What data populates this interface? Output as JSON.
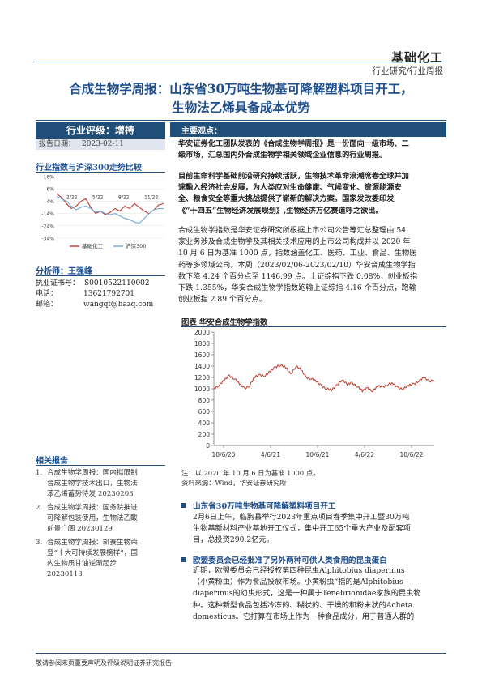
{
  "header": {
    "category": "基础化工",
    "subcategory": "行业研究/行业周报"
  },
  "title_line1": "合成生物学周报：山东省30万吨生物基可降解塑料项目开工，",
  "title_line2": "生物法乙烯具备成本优势",
  "sidebar": {
    "rating": "行业评级：增持",
    "report_date_label": "报告日期：",
    "report_date": "2023-02-11",
    "trend_title": "行业指数与沪深300走势比较",
    "legend": [
      "基础化工",
      "沪深300"
    ],
    "analyst_title": "分析师：王强峰",
    "license_label": "执业证书号：",
    "license": "S0010522110002",
    "phone_label": "电话：",
    "phone": "13621792701",
    "email_label": "邮箱：",
    "email": "wangqf@hazq.com",
    "related_title": "相关报告",
    "related": [
      {
        "num": "1.",
        "lines": [
          "合成生物学周报：国内拟限制",
          "合成生物学技术出口，生物法",
          "苯乙烯蓄势待发 20230203"
        ]
      },
      {
        "num": "2.",
        "lines": [
          "合成生物学周报：国务院推进",
          "可降解包装使用，生物法乙酸",
          "前景广阔 20230129"
        ]
      },
      {
        "num": "3.",
        "lines": [
          "合成生物学周报：凯赛生物荣",
          "登“十大可持续发展榜样”，国",
          "内生物质甘油逆渐起步",
          "20230113"
        ]
      }
    ]
  },
  "key_points": {
    "title": "主要观点：",
    "para1": [
      "华安证券化工团队发表的《合成生物学周报》是一份面向一级市场、二",
      "级市场，汇总国内外合成生物学相关领域企业信息的行业周报。"
    ],
    "para2": [
      "目前生命科学基础前沿研究持续活跃，生物技术革命浪潮席卷全球并加",
      "速融入经济社会发展，为人类应对生命健康、气候变化、资源能源安",
      "全、粮食安全等重大挑战提供了崭新的解决方案。国家发改委印发",
      "《“十四五”生物经济发展规划》,生物经济万亿赛道呼之欲出。"
    ],
    "para3": [
      "合成生物学指数是华安证券研究所根据上市公司公告等汇总整理由 54",
      "家业务涉及合成生物学及其相关技术应用的上市公司构成并以 2020 年",
      "10 月 6 日为基准 1000 点，指数涵盖化工、医药、工业、食品、生物医",
      "药等多领域公司。本周（2023/02/06-2023/02/10）华安合成生物学指",
      "数下降 4.24 个百分点至 1146.99 点。上证综指下跌 0.08%，创业板指",
      "下跌 1.355%，华安合成生物学指数跑输上证综指 4.16 个百分点，跑输",
      "创业板指 2.89 个百分点。"
    ]
  },
  "chart_title": "图表 华安合成生物学指数",
  "chart_note": "注：以 2020 年 10 月 6 日为基准 1000 点。",
  "chart_source": "资料来源：Wind，华安证券研究所",
  "news": [
    {
      "title": "山东省30万吨生物基可降解塑料项目开工",
      "lines": [
        "2月6日上午，临朐县举行2023年重点项目春季集中开工暨30万吨",
        "生物基新材料产业基地开工仪式，集中开工65个重大产业及配套项",
        "目，总投资290.2亿元。"
      ]
    },
    {
      "title": "欧盟委员会已经批准了另外两种可供人类食用的昆虫蛋白",
      "lines": [
        "近期，欧盟委员会已经授权第四种昆虫Alphitobius diaperinus",
        "（小黄粉虫）作为食品投放市场。小黄粉虫“指的是Alphitobius",
        "diaperinus的幼虫形式，这是一种属于Tenebrionidae家族的昆虫物",
        "种。这种新型食品包括冷冻的、糊状的、干燥的和粉末状的Acheta",
        "domesticus。它打算在市场上作为一种食品成分，用于普通人群的"
      ]
    }
  ],
  "footer": "敬请参阅末页重要声明及评级说明证券研究报告",
  "colors": {
    "brand": "#1f4e79",
    "series_red": "#c0392b",
    "series_blue": "#6fa8dc"
  },
  "chart_data": [
    {
      "type": "line",
      "title": "行业指数与沪深300走势比较",
      "ylim": [
        -34,
        16
      ],
      "yticks": [
        "16%",
        "6%",
        "-4%",
        "-14%",
        "-24%",
        "-34%"
      ],
      "xticks": [
        "2/22",
        "5/22",
        "8/22",
        "11/22"
      ],
      "series": [
        {
          "name": "基础化工",
          "values": [
            2,
            -1,
            -6,
            -10,
            -8,
            -4,
            -2,
            -9,
            -14,
            -12,
            -15,
            -13,
            -10,
            -12,
            -8,
            -10,
            -6,
            -9,
            -12,
            -14,
            -11,
            -7,
            -6
          ]
        },
        {
          "name": "沪深300",
          "values": [
            0,
            -2,
            -4,
            -8,
            -11,
            -9,
            -8,
            -10,
            -13,
            -12,
            -14,
            -15,
            -14,
            -16,
            -18,
            -19,
            -21,
            -22,
            -18,
            -14,
            -11,
            -10,
            -10
          ]
        }
      ]
    },
    {
      "type": "line",
      "title": "图表 华安合成生物学指数",
      "ylim": [
        0,
        2000
      ],
      "yticks": [
        "2000",
        "1800",
        "1600",
        "1400",
        "1200",
        "1000",
        "800",
        "600",
        "400",
        "200",
        "0"
      ],
      "xticks": [
        "10/6/20",
        "4/6/21",
        "10/6/21",
        "4/6/22",
        "10/6/22"
      ],
      "series": [
        {
          "name": "华安合成生物学指数",
          "values": [
            1000,
            1060,
            1150,
            1230,
            1180,
            1090,
            1000,
            1060,
            1210,
            1240,
            1230,
            1310,
            1380,
            1420,
            1380,
            1250,
            1400,
            1340,
            1200,
            1180,
            1130,
            1050,
            1000,
            980,
            1060,
            1160,
            1080,
            1100,
            1040,
            960,
            1010,
            960,
            1050,
            1030,
            1080,
            1090,
            1010,
            1000,
            1060,
            1080,
            1140,
            1200,
            1130,
            1150
          ]
        }
      ]
    }
  ]
}
